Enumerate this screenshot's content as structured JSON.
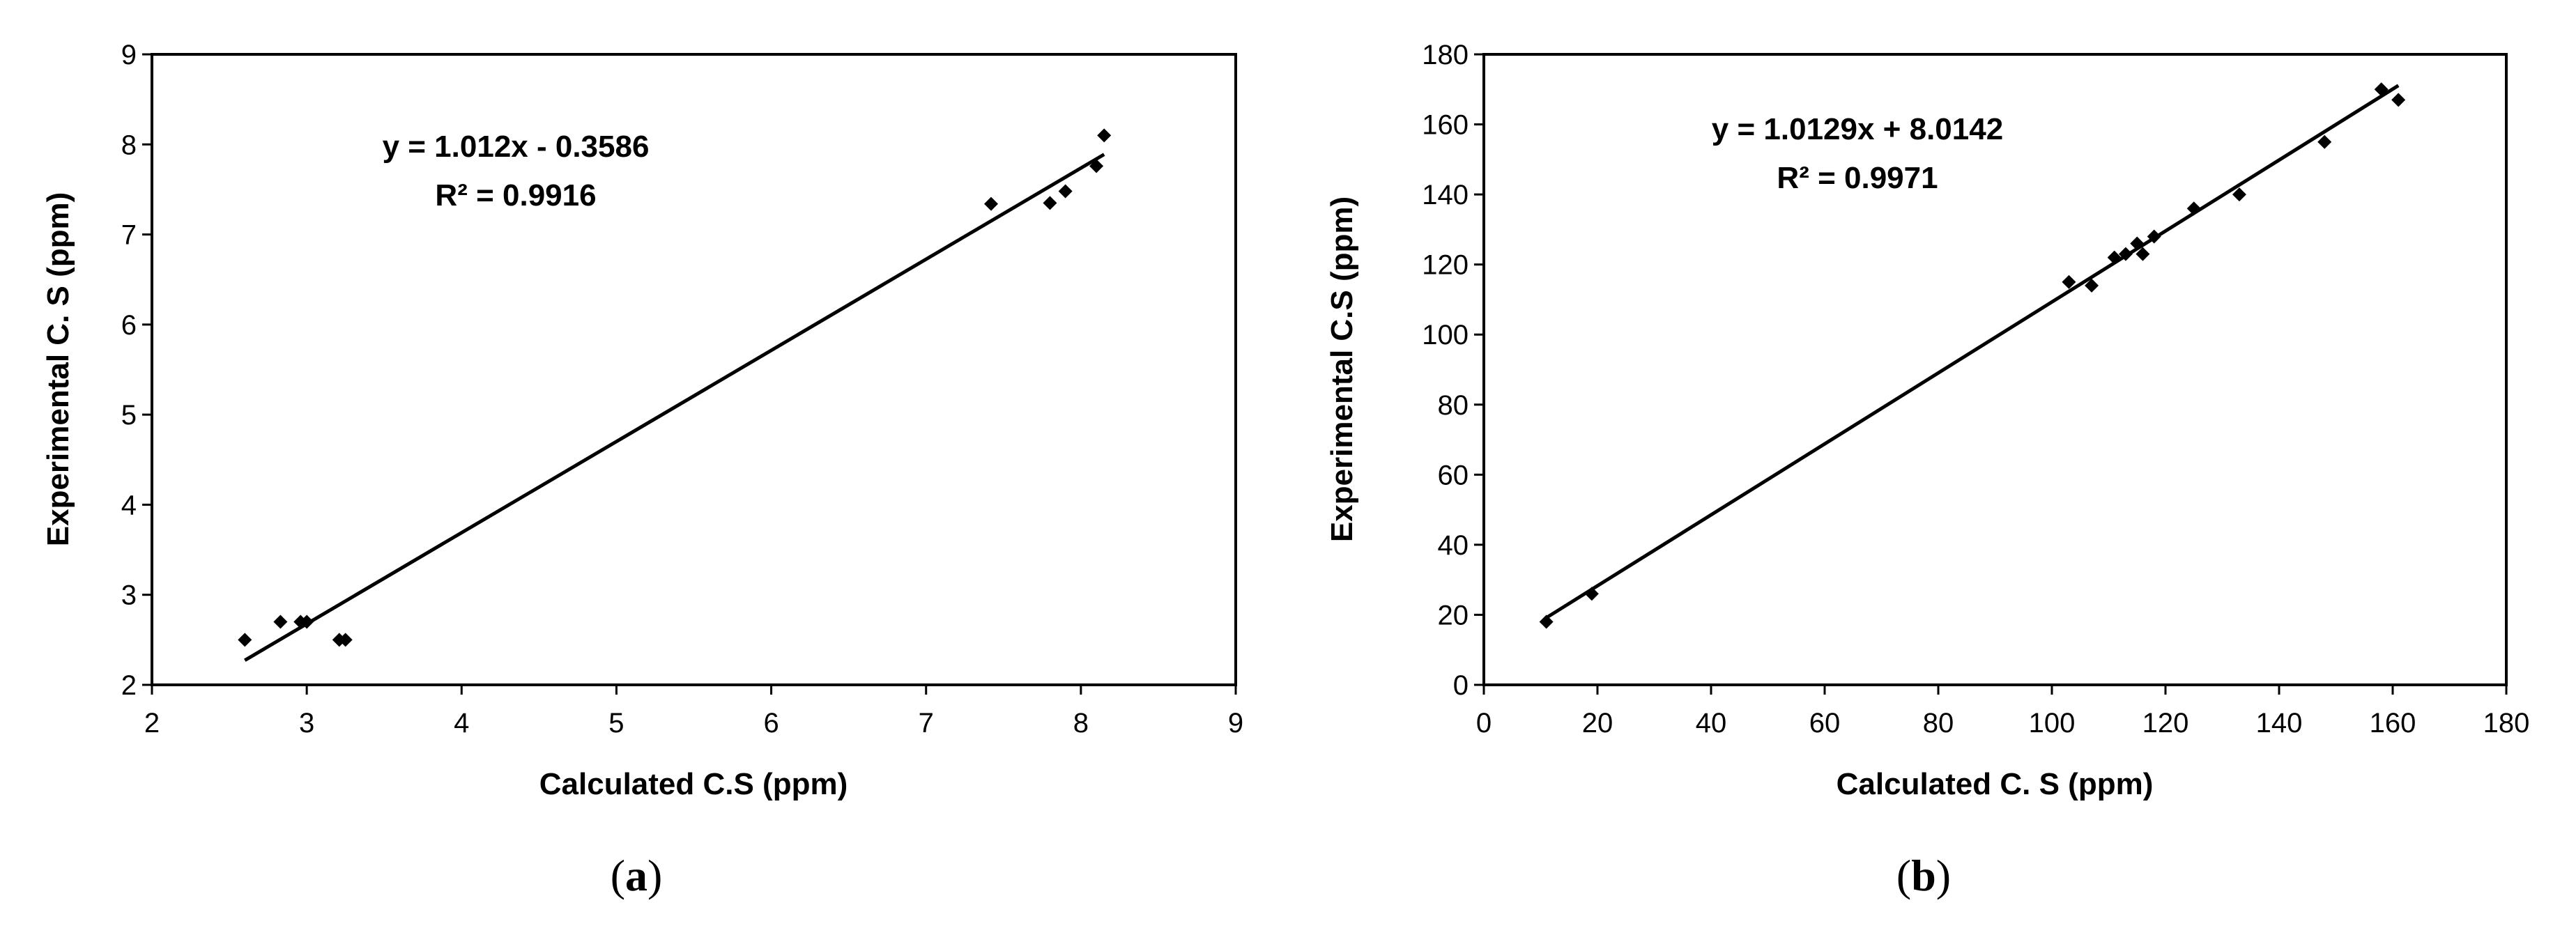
{
  "chart_data": [
    {
      "type": "scatter",
      "panel_label": "(a)",
      "panel_letter": "a",
      "xlabel": "Calculated C.S (ppm)",
      "ylabel": "Experimental C. S (ppm)",
      "xlim": [
        2,
        9
      ],
      "ylim": [
        2,
        9
      ],
      "xticks": [
        2,
        3,
        4,
        5,
        6,
        7,
        8,
        9
      ],
      "yticks": [
        2,
        3,
        4,
        5,
        6,
        7,
        8,
        9
      ],
      "grid": false,
      "equation": "y = 1.012x - 0.3586",
      "r_squared": "R² = 0.9916",
      "trendline": {
        "slope": 1.012,
        "intercept": -0.3586,
        "x_range": [
          2.6,
          8.15
        ]
      },
      "points": [
        {
          "x": 2.6,
          "y": 2.5
        },
        {
          "x": 2.83,
          "y": 2.7
        },
        {
          "x": 2.96,
          "y": 2.7
        },
        {
          "x": 3.0,
          "y": 2.7
        },
        {
          "x": 3.21,
          "y": 2.5
        },
        {
          "x": 3.25,
          "y": 2.5
        },
        {
          "x": 7.42,
          "y": 7.34
        },
        {
          "x": 7.8,
          "y": 7.35
        },
        {
          "x": 7.9,
          "y": 7.48
        },
        {
          "x": 8.1,
          "y": 7.76
        },
        {
          "x": 8.15,
          "y": 8.1
        }
      ]
    },
    {
      "type": "scatter",
      "panel_label": "(b)",
      "panel_letter": "b",
      "xlabel": "Calculated C. S (ppm)",
      "ylabel": "Experimental C.S (ppm)",
      "xlim": [
        0,
        180
      ],
      "ylim": [
        0,
        180
      ],
      "xticks": [
        0,
        20,
        40,
        60,
        80,
        100,
        120,
        140,
        160,
        180
      ],
      "yticks": [
        0,
        20,
        40,
        60,
        80,
        100,
        120,
        140,
        160,
        180
      ],
      "grid": false,
      "equation": "y = 1.0129x + 8.0142",
      "r_squared": "R² = 0.9971",
      "trendline": {
        "slope": 1.0129,
        "intercept": 8.0142,
        "x_range": [
          11,
          161
        ]
      },
      "points": [
        {
          "x": 11,
          "y": 18
        },
        {
          "x": 19,
          "y": 26
        },
        {
          "x": 103,
          "y": 115
        },
        {
          "x": 107,
          "y": 114
        },
        {
          "x": 111,
          "y": 122
        },
        {
          "x": 113,
          "y": 123
        },
        {
          "x": 115,
          "y": 126
        },
        {
          "x": 116,
          "y": 123
        },
        {
          "x": 118,
          "y": 128
        },
        {
          "x": 125,
          "y": 136
        },
        {
          "x": 133,
          "y": 140
        },
        {
          "x": 148,
          "y": 155
        },
        {
          "x": 158,
          "y": 170
        },
        {
          "x": 161,
          "y": 167
        }
      ]
    }
  ]
}
